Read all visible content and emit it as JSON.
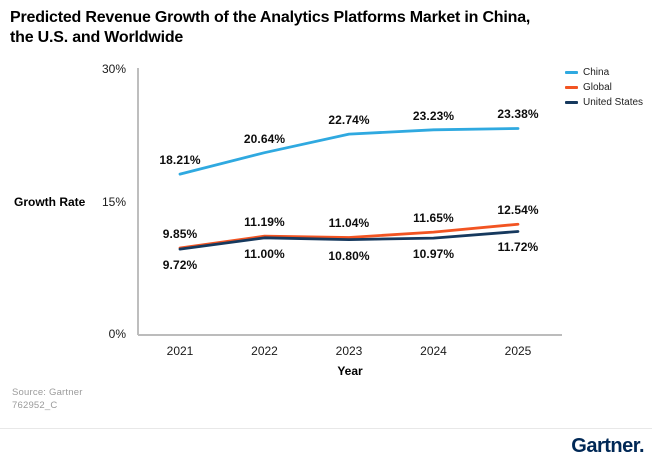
{
  "header": {
    "title_line1": "Predicted Revenue Growth of the Analytics Platforms Market in China,",
    "title_line2": "the U.S. and Worldwide"
  },
  "chart_data": {
    "type": "line",
    "title": "Predicted Revenue Growth of the Analytics Platforms Market in China, the U.S. and Worldwide",
    "xlabel": "Year",
    "ylabel": "Growth Rate",
    "categories": [
      "2021",
      "2022",
      "2023",
      "2024",
      "2025"
    ],
    "series": [
      {
        "name": "China",
        "color": "#2FA9E0",
        "values": [
          18.21,
          20.64,
          22.74,
          23.23,
          23.38
        ],
        "label_position": "above"
      },
      {
        "name": "Global",
        "color": "#F25422",
        "values": [
          9.85,
          11.19,
          11.04,
          11.65,
          12.54
        ],
        "label_position": "above"
      },
      {
        "name": "United States",
        "color": "#16395E",
        "values": [
          9.72,
          11.0,
          10.8,
          10.97,
          11.72
        ],
        "label_position": "below"
      }
    ],
    "ylim": [
      0,
      30
    ],
    "yticks": [
      0,
      15,
      30
    ],
    "ytick_suffix": "%",
    "legend_position": "top-right",
    "grid": false
  },
  "footer": {
    "source": "Source: Gartner",
    "doc_id": "762952_C",
    "logo": "Gartner."
  }
}
